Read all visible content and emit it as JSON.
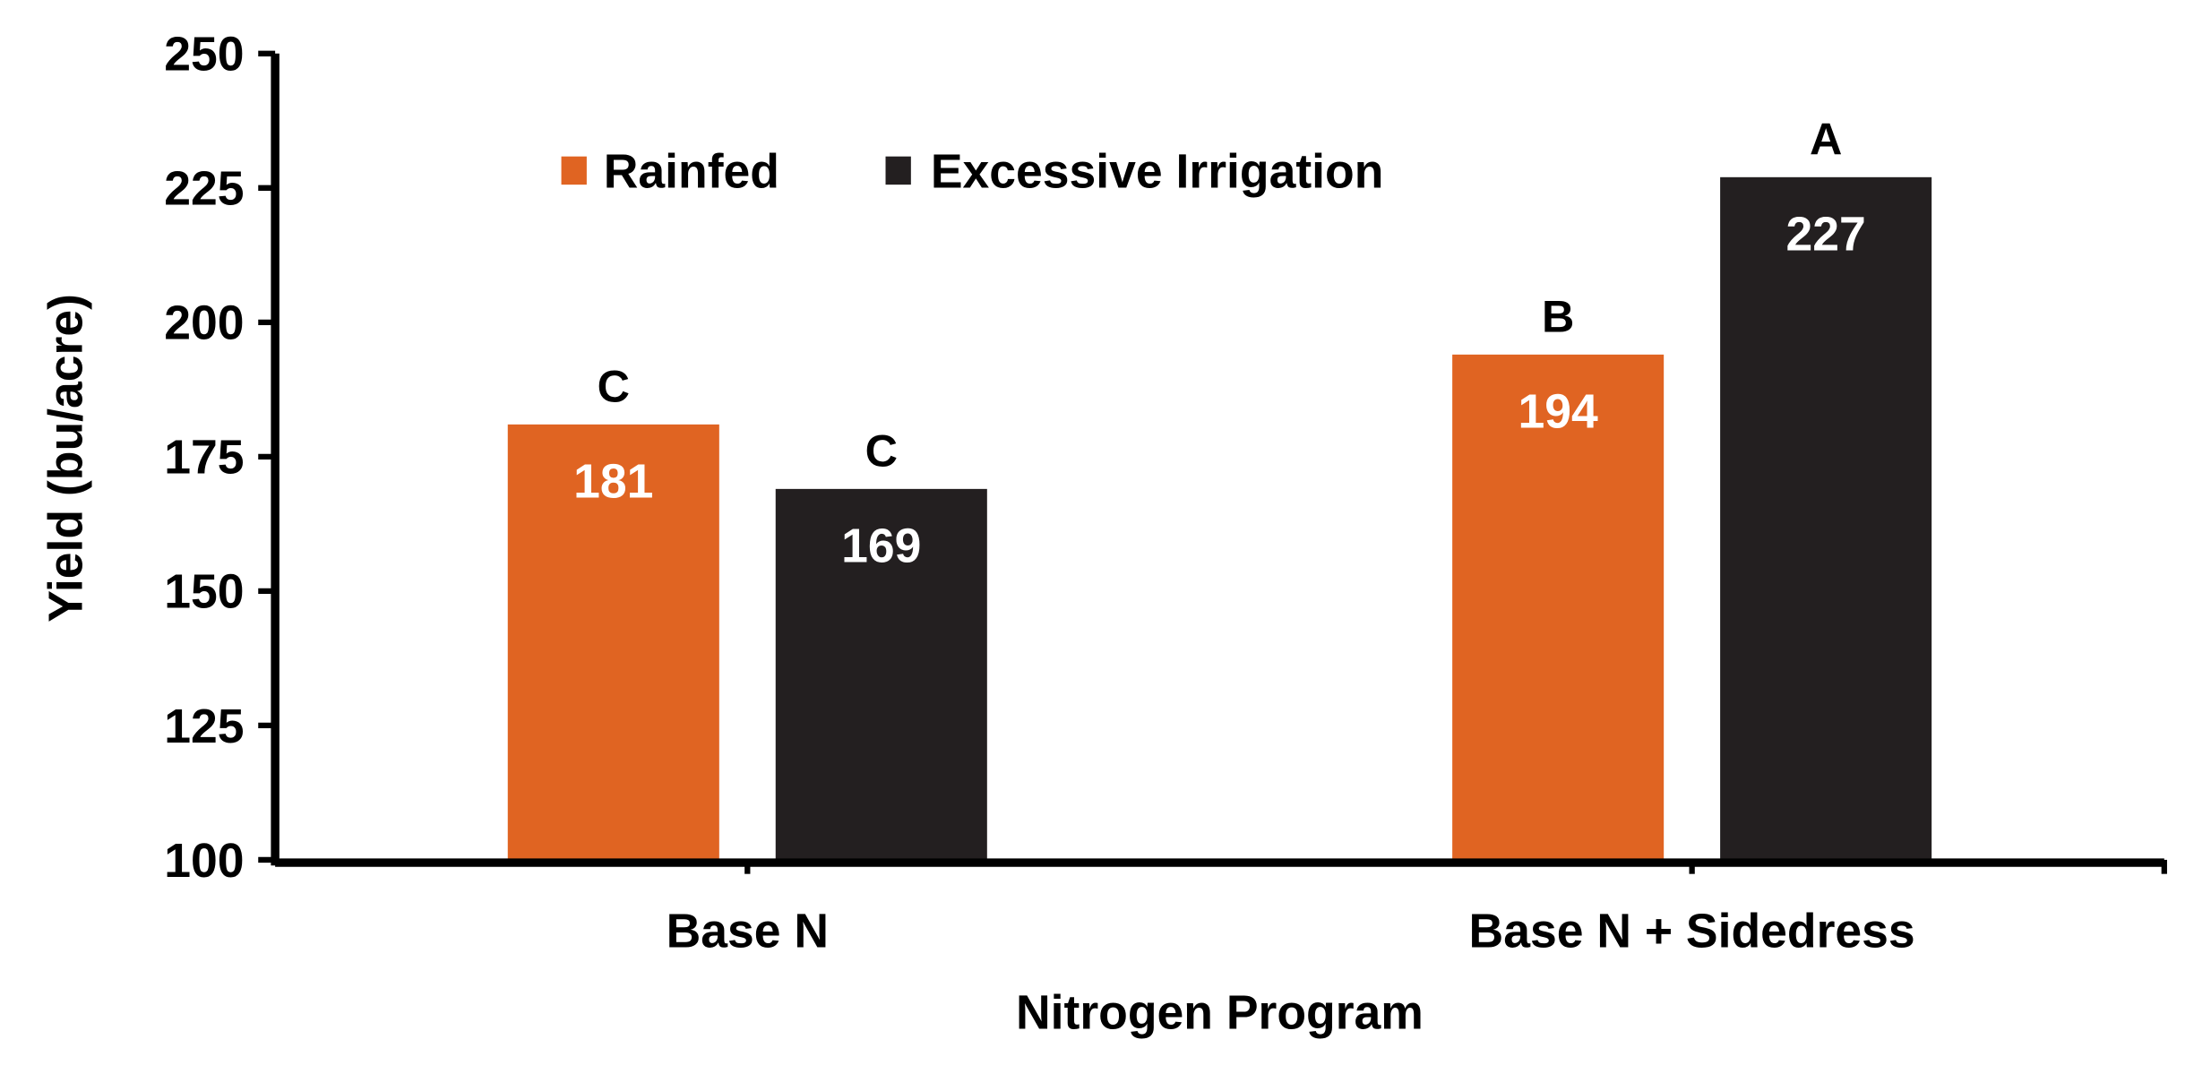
{
  "chart_data": {
    "type": "bar",
    "title": "",
    "xlabel": "Nitrogen Program",
    "ylabel": "Yield (bu/acre)",
    "ylim": [
      100,
      250
    ],
    "yticks": [
      "100",
      "125",
      "150",
      "175",
      "200",
      "225",
      "250"
    ],
    "categories": [
      "Base N",
      "Base N + Sidedress"
    ],
    "series": [
      {
        "name": "Rainfed",
        "color": "#e06422",
        "values": [
          181,
          194
        ],
        "letters": [
          "C",
          "B"
        ]
      },
      {
        "name": "Excessive Irrigation",
        "color": "#231f20",
        "values": [
          169,
          227
        ],
        "letters": [
          "C",
          "A"
        ]
      }
    ],
    "grid": false,
    "legend_position": "top-center"
  }
}
